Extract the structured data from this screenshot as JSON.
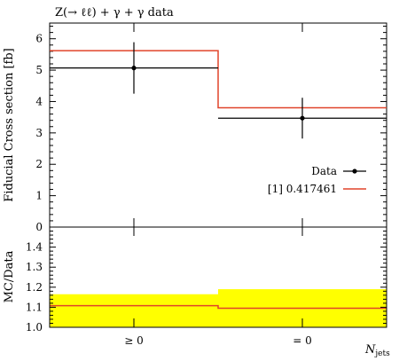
{
  "chart_data": [
    {
      "type": "line",
      "title": "Z(→ ℓℓ) + γ + γ data",
      "ylabel": "Fiducial Cross section [fb]",
      "ylim": [
        0,
        6.5
      ],
      "yticks": [
        "0",
        "1",
        "2",
        "3",
        "4",
        "5",
        "6"
      ],
      "categories": [
        "≥ 0",
        "= 0"
      ],
      "series": [
        {
          "name": "Data",
          "style": "points-with-error-bars",
          "color": "#000000",
          "values": [
            5.07,
            3.47
          ],
          "errors": [
            0.82,
            0.65
          ]
        },
        {
          "name": "[1] 0.417461",
          "style": "histogram-step",
          "color": "#e0442a",
          "values": [
            5.62,
            3.8
          ]
        }
      ],
      "legend": "right"
    },
    {
      "type": "line",
      "ylabel": "MC/Data",
      "xlabel_main": "N",
      "xlabel_sub": "jets",
      "ylim": [
        1.0,
        1.5
      ],
      "yticks": [
        "1.0",
        "1.1",
        "1.2",
        "1.3",
        "1.4"
      ],
      "categories": [
        "≥ 0",
        "= 0"
      ],
      "band": {
        "color": "#ffff00",
        "lower": [
          1.0,
          1.0
        ],
        "upper": [
          1.165,
          1.19
        ]
      },
      "series": [
        {
          "name": "[1] 0.417461",
          "style": "histogram-step",
          "color": "#e0442a",
          "values": [
            1.108,
            1.095
          ]
        }
      ]
    }
  ]
}
